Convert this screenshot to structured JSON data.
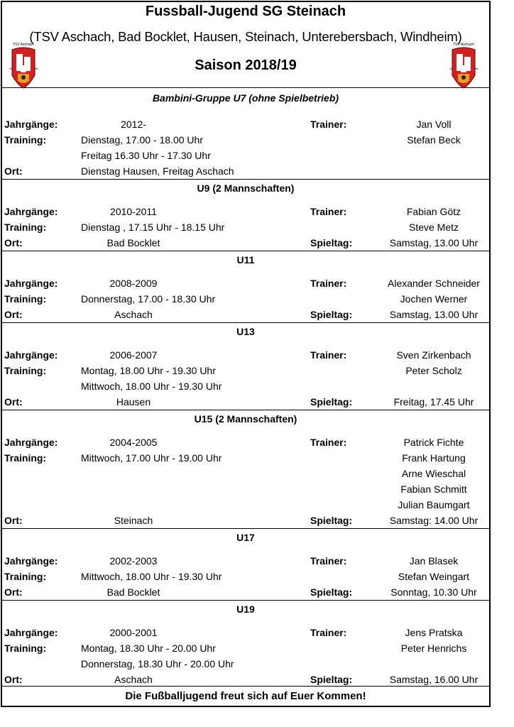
{
  "header": {
    "title": "Fussball-Jugend SG Steinach",
    "subtitle": "(TSV Aschach, Bad Bocklet, Hausen, Steinach, Unterebersbach, Windheim)",
    "season": "Saison 2018/19",
    "logo_text": "TSV Aschach 19 46"
  },
  "colors": {
    "logo_red": "#d42020",
    "logo_gold": "#e8a020"
  },
  "sections": [
    {
      "title": "Bambini-Gruppe U7 (ohne Spielbetrieb)",
      "italic": true,
      "rows": [
        {
          "label": "Jahrgänge:",
          "value": "2012-",
          "align": "center",
          "rlabel": "Trainer:",
          "rvalue": "Jan Voll"
        },
        {
          "label": "Training:",
          "value": "Dienstag, 17.00 - 18.00 Uhr",
          "align": "left",
          "rlabel": "",
          "rvalue": "Stefan Beck"
        },
        {
          "label": "",
          "value": "Freitag 16.30 Uhr - 17.30 Uhr",
          "align": "left",
          "rlabel": "",
          "rvalue": ""
        },
        {
          "label": "Ort:",
          "value": "Dienstag Hausen, Freitag Aschach",
          "align": "left",
          "rlabel": "",
          "rvalue": ""
        }
      ]
    },
    {
      "title": "U9 (2 Mannschaften)",
      "rows": [
        {
          "label": "Jahrgänge:",
          "value": "2010-2011",
          "align": "center",
          "rlabel": "Trainer:",
          "rvalue": "Fabian Götz"
        },
        {
          "label": "Training:",
          "value": "Dienstag , 17.15 Uhr - 18.15 Uhr",
          "align": "left",
          "rlabel": "",
          "rvalue": "Steve Metz"
        },
        {
          "label": "Ort:",
          "value": "Bad Bocklet",
          "align": "center",
          "rlabel": "Spieltag:",
          "rvalue": "Samstag, 13.00 Uhr"
        }
      ]
    },
    {
      "title": "U11",
      "rows": [
        {
          "label": "Jahrgänge:",
          "value": "2008-2009",
          "align": "center",
          "rlabel": "Trainer:",
          "rvalue": "Alexander Schneider"
        },
        {
          "label": "Training:",
          "value": "Donnerstag, 17.00 - 18.30 Uhr",
          "align": "left",
          "rlabel": "",
          "rvalue": "Jochen Werner"
        },
        {
          "label": "Ort:",
          "value": "Aschach",
          "align": "center",
          "rlabel": "Spieltag:",
          "rvalue": "Samstag, 13.00 Uhr"
        }
      ]
    },
    {
      "title": "U13",
      "rows": [
        {
          "label": "Jahrgänge:",
          "value": "2006-2007",
          "align": "center",
          "rlabel": "Trainer:",
          "rvalue": "Sven Zirkenbach"
        },
        {
          "label": "Training:",
          "value": "Montag, 18.00 Uhr - 19.30 Uhr",
          "align": "left",
          "rlabel": "",
          "rvalue": "Peter Scholz"
        },
        {
          "label": "",
          "value": "Mittwoch, 18.00 Uhr - 19.30 Uhr",
          "align": "left",
          "rlabel": "",
          "rvalue": ""
        },
        {
          "label": "Ort:",
          "value": "Hausen",
          "align": "center",
          "rlabel": "Spieltag:",
          "rvalue": "Freitag, 17.45 Uhr"
        }
      ]
    },
    {
      "title": "U15 (2 Mannschaften)",
      "rows": [
        {
          "label": "Jahrgänge:",
          "value": "2004-2005",
          "align": "center",
          "rlabel": "Trainer:",
          "rvalue": "Patrick Fichte"
        },
        {
          "label": "Training:",
          "value": "Mittwoch, 17.00 Uhr - 19.00 Uhr",
          "align": "left",
          "rlabel": "",
          "rvalue": "Frank Hartung"
        },
        {
          "label": "",
          "value": "",
          "align": "left",
          "rlabel": "",
          "rvalue": "Arne Wieschal"
        },
        {
          "label": "",
          "value": "",
          "align": "left",
          "rlabel": "",
          "rvalue": "Fabian Schmitt"
        },
        {
          "label": "",
          "value": "",
          "align": "left",
          "rlabel": "",
          "rvalue": "Julian Baumgart"
        },
        {
          "label": "Ort:",
          "value": "Steinach",
          "align": "center",
          "rlabel": "Spieltag:",
          "rvalue": "Samstag: 14.00 Uhr"
        }
      ]
    },
    {
      "title": "U17",
      "rows": [
        {
          "label": "Jahrgänge:",
          "value": "2002-2003",
          "align": "center",
          "rlabel": "Trainer:",
          "rvalue": "Jan Blasek"
        },
        {
          "label": "Training:",
          "value": "Mittwoch, 18.00 Uhr - 19.30 Uhr",
          "align": "left",
          "rlabel": "",
          "rvalue": "Stefan Weingart"
        },
        {
          "label": "Ort:",
          "value": "Bad Bocklet",
          "align": "center",
          "rlabel": "Spieltag:",
          "rvalue": "Sonntag, 10.30 Uhr"
        }
      ]
    },
    {
      "title": "U19",
      "rows": [
        {
          "label": "Jahrgänge:",
          "value": "2000-2001",
          "align": "center",
          "rlabel": "Trainer:",
          "rvalue": "Jens Pratska"
        },
        {
          "label": "Training:",
          "value": "Montag, 18.30 Uhr - 20.00 Uhr",
          "align": "left",
          "rlabel": "",
          "rvalue": "Peter Henrichs"
        },
        {
          "label": "",
          "value": "Donnerstag, 18.30 Uhr - 20.00 Uhr",
          "align": "left",
          "rlabel": "",
          "rvalue": ""
        },
        {
          "label": "Ort:",
          "value": "Aschach",
          "align": "center",
          "rlabel": "Spieltag:",
          "rvalue": "Samstag, 16.00 Uhr"
        }
      ]
    }
  ],
  "footer": "Die Fußballjugend freut sich auf Euer Kommen!"
}
